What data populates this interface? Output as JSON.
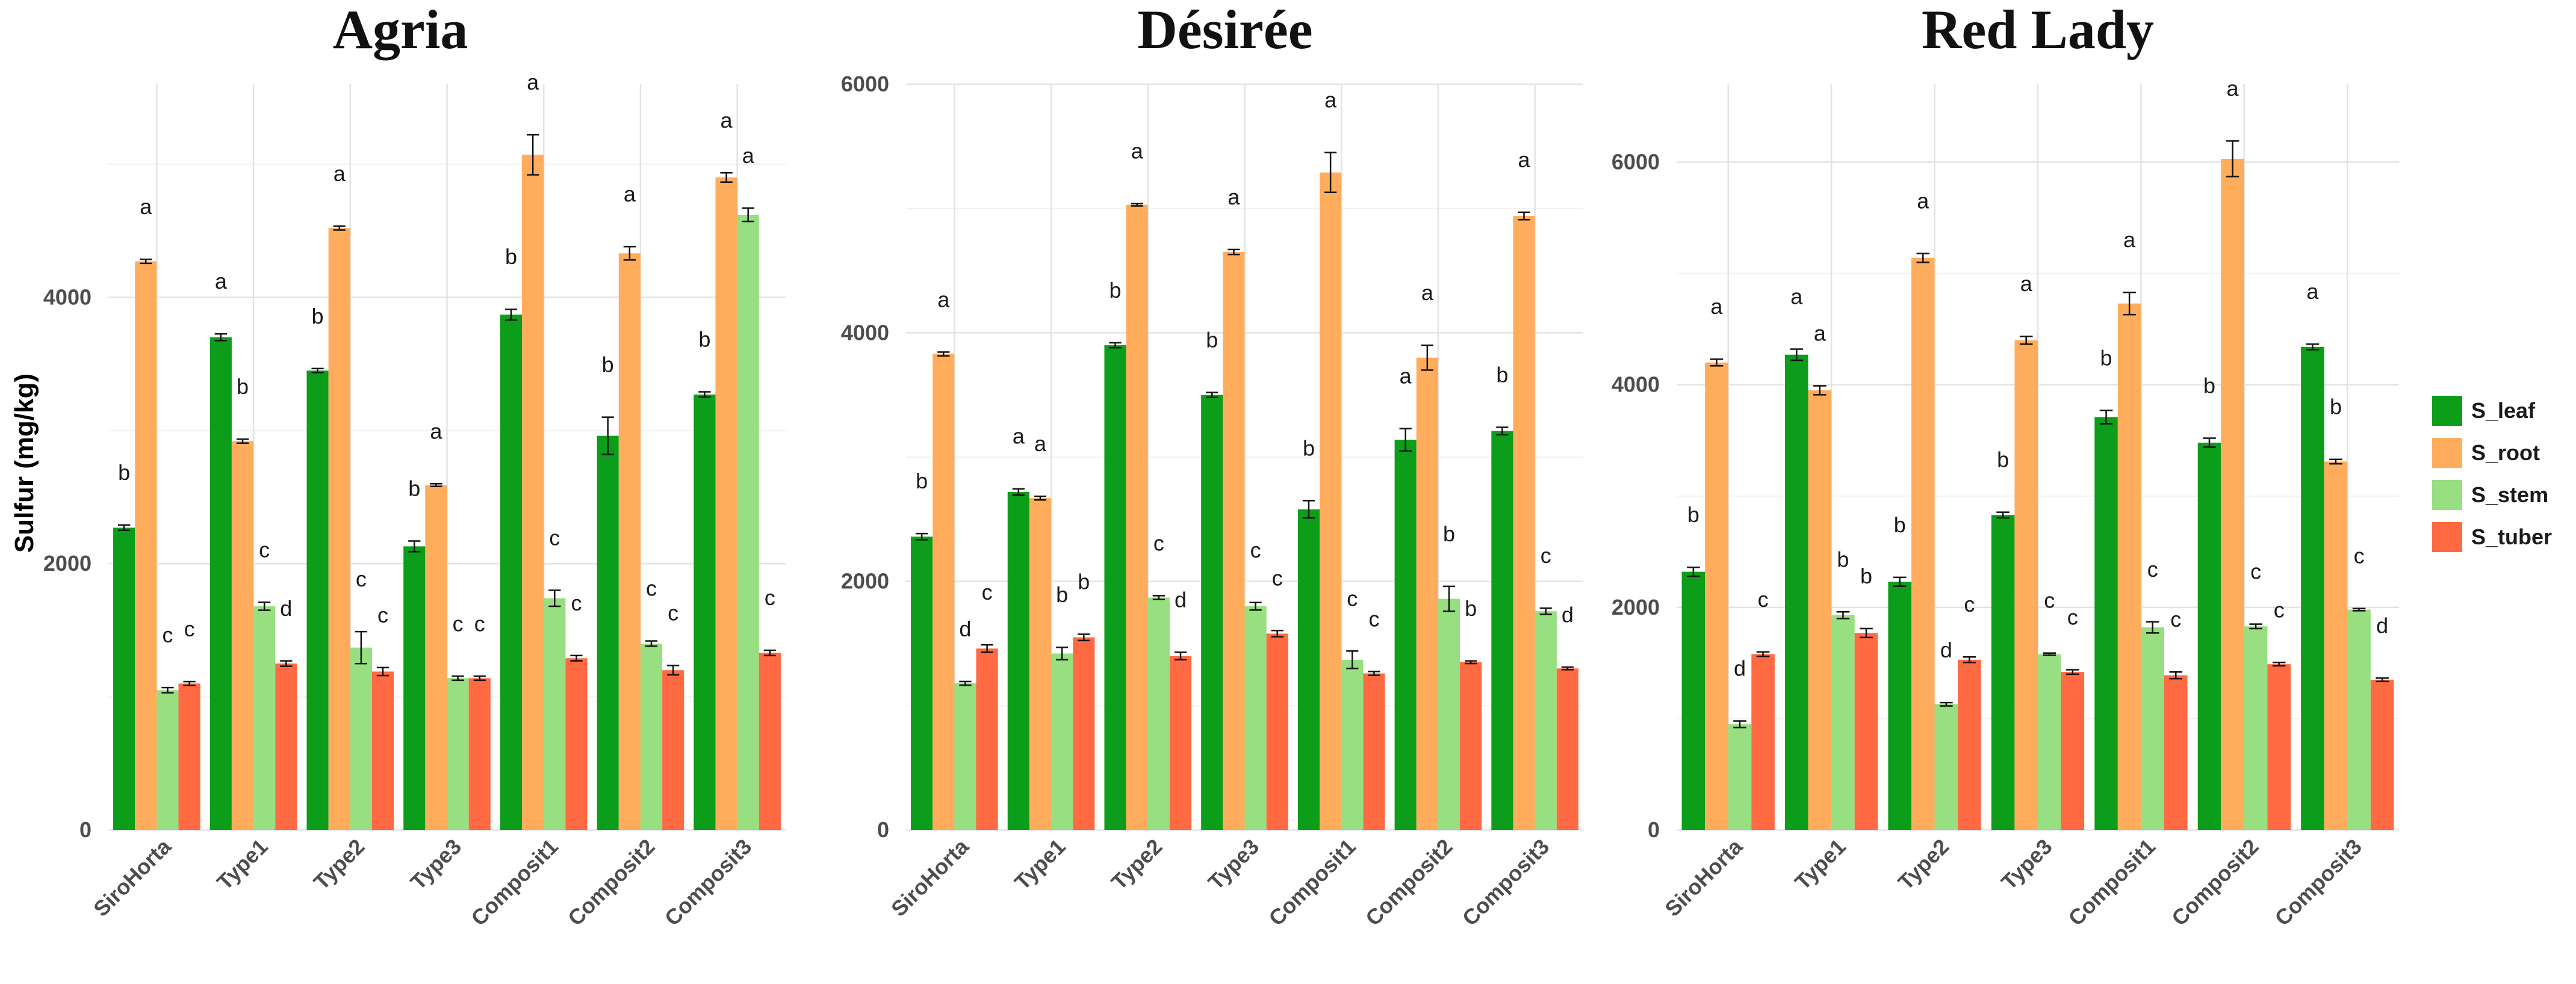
{
  "figure": {
    "ylabel": "Sulfur (mg/kg)"
  },
  "legend": [
    {
      "name": "S_leaf",
      "color": "#0c9e1a"
    },
    {
      "name": "S_root",
      "color": "#ffad5c"
    },
    {
      "name": "S_stem",
      "color": "#97df80"
    },
    {
      "name": "S_tuber",
      "color": "#ff6a42"
    }
  ],
  "chart_data": [
    {
      "type": "bar",
      "title": "Agria",
      "xlabel": "",
      "ylabel": "Sulfur (mg/kg)",
      "ylim": [
        0,
        5600
      ],
      "yticks": [
        0,
        2000,
        4000
      ],
      "categories": [
        "SiroHorta",
        "Type1",
        "Type2",
        "Type3",
        "Composit1",
        "Composit2",
        "Composit3"
      ],
      "series": [
        {
          "name": "S_leaf",
          "values": [
            2270,
            3700,
            3450,
            2130,
            3870,
            2960,
            3270
          ],
          "errors": [
            20,
            25,
            15,
            40,
            40,
            140,
            20
          ],
          "letters": [
            "b",
            "a",
            "b",
            "b",
            "b",
            "b",
            "b"
          ]
        },
        {
          "name": "S_root",
          "values": [
            4270,
            2920,
            4520,
            2590,
            5070,
            4330,
            4900
          ],
          "errors": [
            15,
            15,
            15,
            10,
            150,
            50,
            35
          ],
          "letters": [
            "a",
            "b",
            "a",
            "a",
            "a",
            "a",
            "a"
          ]
        },
        {
          "name": "S_stem",
          "values": [
            1050,
            1680,
            1370,
            1140,
            1740,
            1400,
            4620
          ],
          "errors": [
            20,
            30,
            120,
            15,
            60,
            20,
            50
          ],
          "letters": [
            "c",
            "c",
            "c",
            "c",
            "c",
            "c",
            "a"
          ]
        },
        {
          "name": "S_tuber",
          "values": [
            1100,
            1250,
            1190,
            1140,
            1290,
            1200,
            1330
          ],
          "errors": [
            15,
            20,
            30,
            15,
            20,
            35,
            20
          ],
          "letters": [
            "c",
            "d",
            "c",
            "c",
            "c",
            "c",
            "c"
          ]
        }
      ]
    },
    {
      "type": "bar",
      "title": "Désirée",
      "xlabel": "",
      "ylabel": "",
      "ylim": [
        0,
        6000
      ],
      "yticks": [
        0,
        2000,
        4000,
        6000
      ],
      "categories": [
        "SiroHorta",
        "Type1",
        "Type2",
        "Type3",
        "Composit1",
        "Composit2",
        "Composit3"
      ],
      "series": [
        {
          "name": "S_leaf",
          "values": [
            2360,
            2720,
            3900,
            3500,
            2580,
            3140,
            3210
          ],
          "errors": [
            25,
            25,
            20,
            20,
            70,
            90,
            30
          ],
          "letters": [
            "b",
            "a",
            "b",
            "b",
            "b",
            "a",
            "b"
          ]
        },
        {
          "name": "S_root",
          "values": [
            3830,
            2670,
            5030,
            4650,
            5290,
            3800,
            4940
          ],
          "errors": [
            15,
            15,
            10,
            20,
            160,
            100,
            30
          ],
          "letters": [
            "a",
            "a",
            "a",
            "a",
            "a",
            "a",
            "a"
          ]
        },
        {
          "name": "S_stem",
          "values": [
            1180,
            1420,
            1870,
            1800,
            1370,
            1860,
            1760
          ],
          "errors": [
            15,
            50,
            15,
            30,
            70,
            100,
            25
          ],
          "letters": [
            "d",
            "b",
            "c",
            "c",
            "c",
            "b",
            "c"
          ]
        },
        {
          "name": "S_tuber",
          "values": [
            1460,
            1550,
            1400,
            1580,
            1260,
            1350,
            1300
          ],
          "errors": [
            30,
            25,
            30,
            25,
            15,
            10,
            10
          ],
          "letters": [
            "c",
            "b",
            "d",
            "c",
            "c",
            "b",
            "d"
          ]
        }
      ]
    },
    {
      "type": "bar",
      "title": "Red Lady",
      "xlabel": "",
      "ylabel": "",
      "ylim": [
        0,
        6700
      ],
      "yticks": [
        0,
        2000,
        4000,
        6000
      ],
      "categories": [
        "SiroHorta",
        "Type1",
        "Type2",
        "Type3",
        "Composit1",
        "Composit2",
        "Composit3"
      ],
      "series": [
        {
          "name": "S_leaf",
          "values": [
            2320,
            4270,
            2230,
            2830,
            3710,
            3480,
            4340
          ],
          "errors": [
            40,
            50,
            40,
            25,
            60,
            40,
            25
          ],
          "letters": [
            "b",
            "a",
            "b",
            "b",
            "b",
            "b",
            "a"
          ]
        },
        {
          "name": "S_root",
          "values": [
            4200,
            3950,
            5140,
            4400,
            4730,
            6030,
            3310
          ],
          "errors": [
            30,
            40,
            40,
            35,
            100,
            160,
            20
          ],
          "letters": [
            "a",
            "a",
            "a",
            "a",
            "a",
            "a",
            "b"
          ]
        },
        {
          "name": "S_stem",
          "values": [
            950,
            1930,
            1130,
            1580,
            1820,
            1830,
            1980
          ],
          "errors": [
            30,
            30,
            15,
            10,
            50,
            20,
            10
          ],
          "letters": [
            "d",
            "b",
            "d",
            "c",
            "c",
            "c",
            "c"
          ]
        },
        {
          "name": "S_tuber",
          "values": [
            1580,
            1770,
            1530,
            1420,
            1390,
            1490,
            1350
          ],
          "errors": [
            20,
            40,
            25,
            20,
            30,
            15,
            15
          ],
          "letters": [
            "c",
            "b",
            "c",
            "c",
            "c",
            "c",
            "d"
          ]
        }
      ]
    }
  ]
}
